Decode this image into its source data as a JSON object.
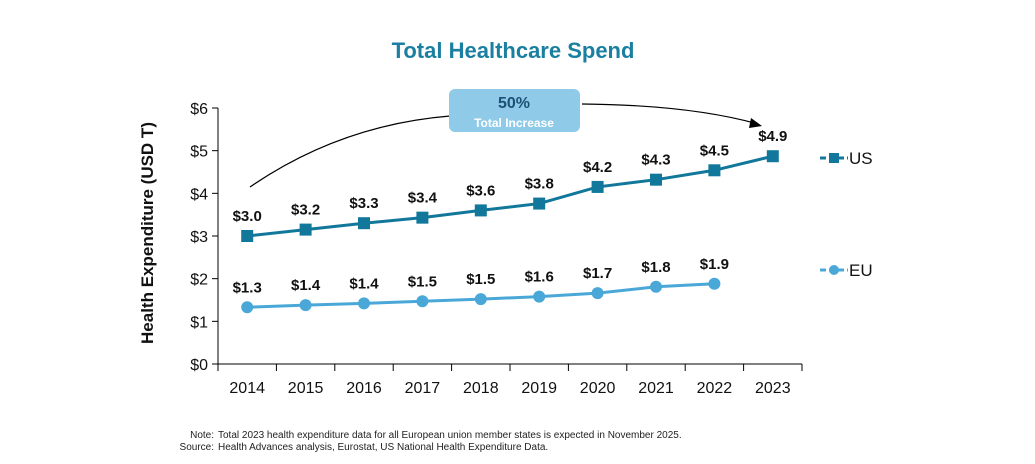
{
  "colors": {
    "us": "#11779B",
    "eu": "#4AA8D8",
    "title": "#1A7FA0",
    "callout_bg": "#8FCBE8",
    "callout_text": "#1A5276",
    "axis": "#000000"
  },
  "chart_data": {
    "type": "line",
    "title": "Total Healthcare Spend",
    "xlabel": "",
    "ylabel": "Health Expenditure (USD T)",
    "categories": [
      "2014",
      "2015",
      "2016",
      "2017",
      "2018",
      "2019",
      "2020",
      "2021",
      "2022",
      "2023"
    ],
    "ylim": [
      0,
      6
    ],
    "yticks": [
      0,
      1,
      2,
      3,
      4,
      5,
      6
    ],
    "ytick_labels": [
      "$0",
      "$1",
      "$2",
      "$3",
      "$4",
      "$5",
      "$6"
    ],
    "series": [
      {
        "name": "US",
        "marker": "square",
        "values": [
          3.0,
          3.15,
          3.3,
          3.43,
          3.6,
          3.76,
          4.15,
          4.32,
          4.54,
          4.87
        ],
        "labels": [
          "$3.0",
          "$3.2",
          "$3.3",
          "$3.4",
          "$3.6",
          "$3.8",
          "$4.2",
          "$4.3",
          "$4.5",
          "$4.9"
        ]
      },
      {
        "name": "EU",
        "marker": "circle",
        "values": [
          1.33,
          1.38,
          1.42,
          1.47,
          1.52,
          1.58,
          1.66,
          1.81,
          1.88,
          null
        ],
        "labels": [
          "$1.3",
          "$1.4",
          "$1.4",
          "$1.5",
          "$1.5",
          "$1.6",
          "$1.7",
          "$1.8",
          "$1.9",
          null
        ]
      }
    ],
    "annotation": {
      "value": "50%",
      "text": "Total Increase"
    },
    "legend_position": "right"
  },
  "notes": {
    "note_label": "Note:",
    "note_text": "Total 2023 health expenditure data for all European union member states is expected in November 2025.",
    "source_label": "Source:",
    "source_text": "Health Advances analysis, Eurostat, US National Health Expenditure Data."
  }
}
